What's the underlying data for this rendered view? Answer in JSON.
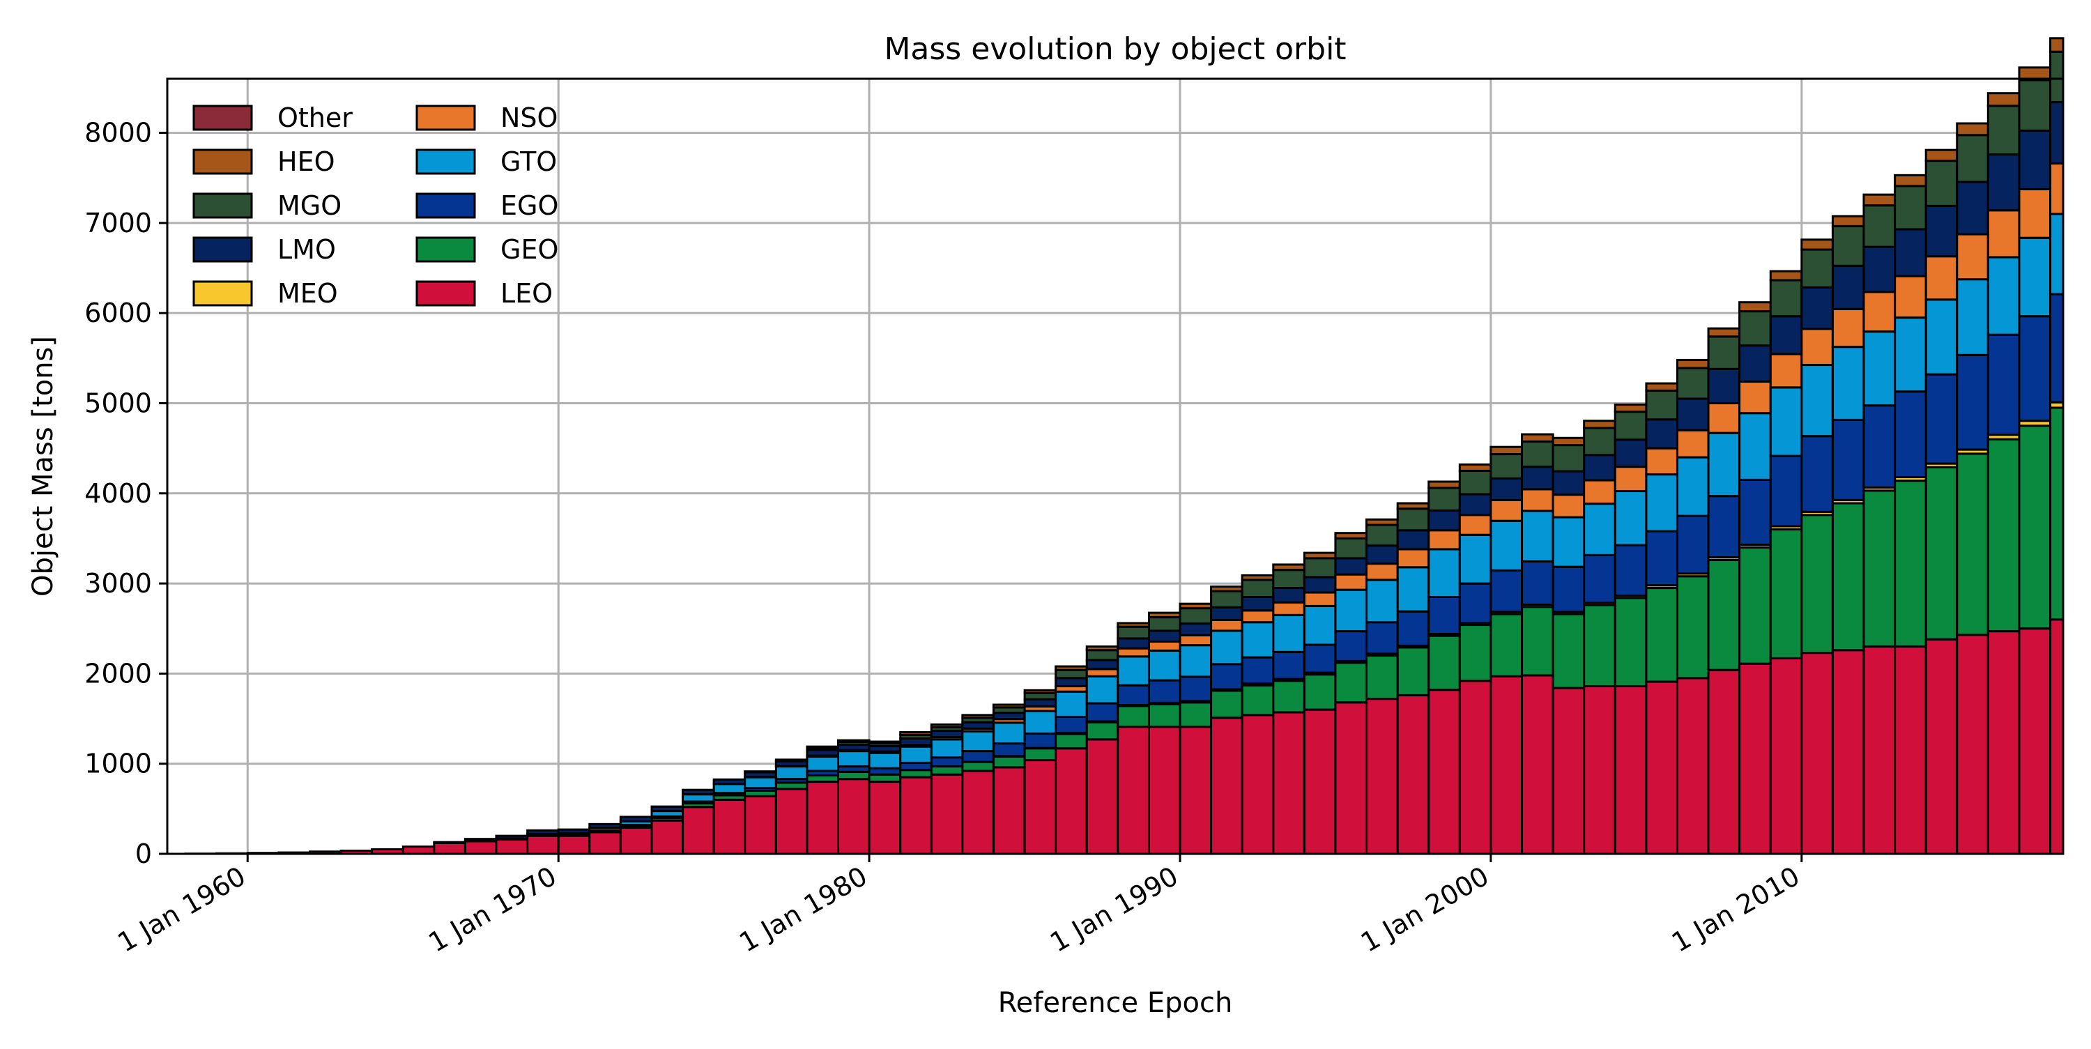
{
  "chart_data": {
    "type": "bar",
    "stacked": true,
    "title": "Mass evolution by object orbit",
    "xlabel": "Reference Epoch",
    "ylabel": "Object Mass [tons]",
    "xlim": [
      "1957-06-01",
      "2018-06-01"
    ],
    "ylim": [
      0,
      8600
    ],
    "x_ticks": [
      "1 Jan 1960",
      "1 Jan 1970",
      "1 Jan 1980",
      "1 Jan 1990",
      "1 Jan 2000",
      "1 Jan 2010"
    ],
    "y_ticks": [
      0,
      1000,
      2000,
      3000,
      4000,
      5000,
      6000,
      7000,
      8000
    ],
    "grid": true,
    "legend": {
      "placement": "top-left",
      "columns": 2
    },
    "x": [
      "1958-01-01",
      "1959-01-01",
      "1960-01-01",
      "1961-01-01",
      "1962-01-01",
      "1963-01-01",
      "1964-01-01",
      "1965-01-01",
      "1966-01-01",
      "1967-01-01",
      "1968-01-01",
      "1969-01-01",
      "1970-01-01",
      "1971-01-01",
      "1972-01-01",
      "1973-01-01",
      "1974-01-01",
      "1975-01-01",
      "1976-01-01",
      "1977-01-01",
      "1978-01-01",
      "1979-01-01",
      "1980-01-01",
      "1981-01-01",
      "1982-01-01",
      "1983-01-01",
      "1984-01-01",
      "1985-01-01",
      "1986-01-01",
      "1987-01-01",
      "1988-01-01",
      "1989-01-01",
      "1990-01-01",
      "1991-01-01",
      "1992-01-01",
      "1993-01-01",
      "1994-01-01",
      "1995-01-01",
      "1996-01-01",
      "1997-01-01",
      "1998-01-01",
      "1999-01-01",
      "2000-01-01",
      "2001-01-01",
      "2002-01-01",
      "2003-01-01",
      "2004-01-01",
      "2005-01-01",
      "2006-01-01",
      "2007-01-01",
      "2008-01-01",
      "2009-01-01",
      "2010-01-01",
      "2011-01-01",
      "2012-01-01",
      "2013-01-01",
      "2014-01-01",
      "2015-01-01",
      "2016-01-01",
      "2017-01-01",
      "2018-01-01"
    ],
    "series": [
      {
        "name": "LEO",
        "color": "#d0103a",
        "values": [
          2,
          5,
          10,
          15,
          25,
          35,
          50,
          80,
          120,
          140,
          160,
          200,
          200,
          240,
          290,
          370,
          520,
          600,
          640,
          720,
          800,
          830,
          800,
          850,
          880,
          920,
          960,
          1040,
          1170,
          1270,
          1410,
          1410,
          1410,
          1510,
          1540,
          1570,
          1600,
          1680,
          1720,
          1760,
          1820,
          1920,
          1970,
          1980,
          1840,
          1860,
          1860,
          1910,
          1950,
          2040,
          2110,
          2170,
          2230,
          2260,
          2300,
          2300,
          2380,
          2430,
          2470,
          2500,
          2600
        ]
      },
      {
        "name": "GEO",
        "color": "#0a8a3f",
        "values": [
          0,
          0,
          0,
          0,
          0,
          0,
          0,
          0,
          0,
          0,
          0,
          5,
          10,
          15,
          20,
          30,
          40,
          50,
          60,
          70,
          70,
          80,
          80,
          80,
          90,
          100,
          120,
          130,
          160,
          190,
          230,
          250,
          270,
          300,
          330,
          350,
          390,
          440,
          480,
          530,
          600,
          620,
          690,
          760,
          820,
          900,
          980,
          1040,
          1130,
          1220,
          1290,
          1430,
          1530,
          1630,
          1730,
          1840,
          1910,
          2010,
          2130,
          2250,
          2350
        ]
      },
      {
        "name": "MEO",
        "color": "#f8c72d",
        "values": [
          0,
          0,
          0,
          0,
          0,
          0,
          0,
          0,
          0,
          0,
          0,
          0,
          0,
          0,
          0,
          0,
          0,
          0,
          0,
          0,
          0,
          0,
          0,
          0,
          0,
          0,
          5,
          5,
          10,
          10,
          10,
          15,
          15,
          15,
          20,
          20,
          20,
          20,
          20,
          20,
          20,
          20,
          25,
          25,
          25,
          25,
          25,
          30,
          30,
          30,
          30,
          35,
          35,
          35,
          35,
          40,
          40,
          45,
          50,
          55,
          60
        ]
      },
      {
        "name": "EGO",
        "color": "#053592",
        "values": [
          0,
          0,
          0,
          0,
          0,
          0,
          0,
          0,
          0,
          0,
          0,
          0,
          0,
          5,
          10,
          15,
          20,
          25,
          30,
          40,
          50,
          60,
          70,
          80,
          100,
          120,
          140,
          160,
          180,
          200,
          220,
          250,
          270,
          280,
          290,
          300,
          310,
          330,
          350,
          380,
          410,
          440,
          460,
          480,
          500,
          530,
          560,
          600,
          640,
          680,
          720,
          780,
          840,
          890,
          910,
          950,
          990,
          1050,
          1110,
          1160,
          1200
        ]
      },
      {
        "name": "GTO",
        "color": "#0596d6",
        "values": [
          0,
          0,
          0,
          0,
          0,
          0,
          0,
          0,
          0,
          5,
          10,
          15,
          20,
          30,
          40,
          60,
          80,
          100,
          120,
          140,
          160,
          170,
          170,
          180,
          200,
          220,
          230,
          250,
          280,
          300,
          320,
          330,
          350,
          370,
          390,
          410,
          430,
          460,
          470,
          490,
          530,
          540,
          550,
          560,
          550,
          570,
          600,
          630,
          650,
          700,
          740,
          760,
          790,
          810,
          820,
          820,
          830,
          840,
          860,
          870,
          890
        ]
      },
      {
        "name": "NSO",
        "color": "#e8762b",
        "values": [
          0,
          0,
          0,
          0,
          0,
          0,
          0,
          0,
          0,
          0,
          0,
          0,
          0,
          0,
          0,
          0,
          0,
          0,
          5,
          5,
          10,
          10,
          15,
          20,
          25,
          30,
          40,
          50,
          60,
          80,
          90,
          100,
          110,
          120,
          130,
          140,
          150,
          170,
          180,
          200,
          210,
          220,
          230,
          240,
          250,
          260,
          270,
          290,
          300,
          330,
          350,
          370,
          400,
          420,
          440,
          460,
          480,
          500,
          520,
          540,
          560
        ]
      },
      {
        "name": "LMO",
        "color": "#04235f",
        "values": [
          0,
          0,
          0,
          0,
          0,
          0,
          0,
          0,
          10,
          20,
          30,
          40,
          40,
          40,
          50,
          50,
          50,
          50,
          50,
          50,
          60,
          60,
          60,
          70,
          70,
          70,
          70,
          80,
          90,
          100,
          110,
          120,
          130,
          140,
          150,
          160,
          170,
          180,
          200,
          210,
          220,
          230,
          240,
          250,
          260,
          280,
          300,
          320,
          350,
          380,
          400,
          420,
          460,
          480,
          500,
          520,
          560,
          580,
          620,
          650,
          680
        ]
      },
      {
        "name": "MGO",
        "color": "#2c5034",
        "values": [
          0,
          0,
          0,
          0,
          0,
          0,
          0,
          0,
          0,
          0,
          0,
          0,
          0,
          0,
          0,
          0,
          0,
          0,
          0,
          10,
          20,
          30,
          30,
          40,
          40,
          50,
          60,
          70,
          90,
          110,
          130,
          150,
          170,
          180,
          190,
          200,
          210,
          220,
          230,
          240,
          250,
          260,
          270,
          280,
          290,
          300,
          310,
          320,
          340,
          360,
          380,
          400,
          420,
          440,
          460,
          480,
          500,
          520,
          540,
          560,
          560
        ]
      },
      {
        "name": "HEO",
        "color": "#a65618",
        "values": [
          0,
          0,
          0,
          0,
          0,
          0,
          0,
          0,
          0,
          0,
          0,
          0,
          0,
          0,
          0,
          0,
          0,
          0,
          10,
          10,
          20,
          20,
          20,
          30,
          30,
          30,
          30,
          30,
          40,
          40,
          40,
          50,
          50,
          50,
          50,
          60,
          60,
          60,
          60,
          60,
          70,
          70,
          80,
          80,
          80,
          80,
          80,
          80,
          90,
          90,
          100,
          100,
          110,
          110,
          120,
          120,
          120,
          130,
          140,
          140,
          150
        ]
      },
      {
        "name": "Other",
        "color": "#8b2b3a",
        "values": [
          0,
          0,
          0,
          0,
          0,
          0,
          0,
          0,
          0,
          0,
          0,
          0,
          0,
          0,
          0,
          0,
          0,
          0,
          0,
          0,
          0,
          0,
          0,
          0,
          0,
          0,
          0,
          0,
          0,
          0,
          0,
          0,
          0,
          0,
          0,
          0,
          0,
          0,
          0,
          0,
          0,
          0,
          0,
          0,
          0,
          0,
          0,
          0,
          0,
          0,
          0,
          0,
          0,
          0,
          0,
          0,
          0,
          0,
          0,
          0,
          0
        ]
      }
    ]
  }
}
